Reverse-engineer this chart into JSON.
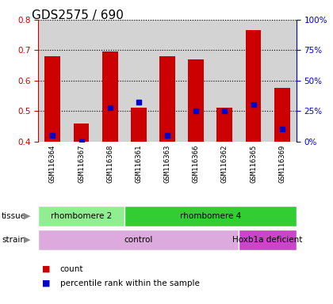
{
  "title": "GDS2575 / 690",
  "samples": [
    "GSM116364",
    "GSM116367",
    "GSM116368",
    "GSM116361",
    "GSM116363",
    "GSM116366",
    "GSM116362",
    "GSM116365",
    "GSM116369"
  ],
  "count_values": [
    0.68,
    0.46,
    0.695,
    0.51,
    0.68,
    0.67,
    0.51,
    0.765,
    0.575
  ],
  "percentile_values": [
    0.42,
    0.4,
    0.51,
    0.53,
    0.42,
    0.5,
    0.5,
    0.52,
    0.44
  ],
  "ymin": 0.4,
  "ymax": 0.8,
  "yticks": [
    0.4,
    0.5,
    0.6,
    0.7,
    0.8
  ],
  "right_yticks": [
    0,
    25,
    50,
    75,
    100
  ],
  "right_ytick_labels": [
    "0%",
    "25%",
    "50%",
    "75%",
    "100%"
  ],
  "bar_color": "#cc0000",
  "dot_color": "#0000cc",
  "background_color": "#ffffff",
  "plot_bg_color": "#d3d3d3",
  "tissue_groups": [
    {
      "label": "rhombomere 2",
      "start": 0,
      "end": 3,
      "color": "#90ee90"
    },
    {
      "label": "rhombomere 4",
      "start": 3,
      "end": 9,
      "color": "#32cd32"
    }
  ],
  "strain_groups": [
    {
      "label": "control",
      "start": 0,
      "end": 7,
      "color": "#ddaadd"
    },
    {
      "label": "Hoxb1a deficient",
      "start": 7,
      "end": 9,
      "color": "#cc44cc"
    }
  ],
  "legend_count_label": "count",
  "legend_percentile_label": "percentile rank within the sample",
  "left_axis_color": "#cc0000",
  "right_axis_color": "#0000cc",
  "title_fontsize": 11,
  "tick_fontsize": 7.5,
  "label_fontsize": 7
}
